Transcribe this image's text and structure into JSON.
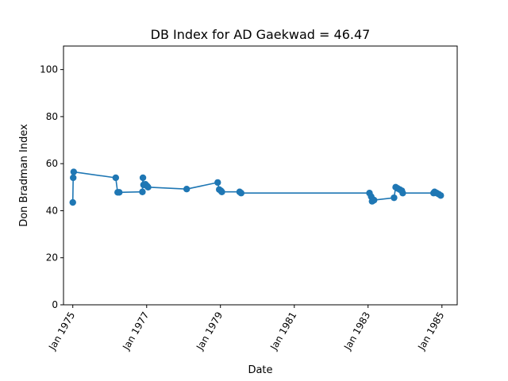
{
  "chart_data": {
    "type": "line",
    "title": "DB Index for AD Gaekwad = 46.47",
    "xlabel": "Date",
    "ylabel": "Don Bradman Index",
    "ylim": [
      0,
      110
    ],
    "xlim": [
      "1974-10-01",
      "1985-06-01"
    ],
    "yticks": [
      0,
      20,
      40,
      60,
      80,
      100
    ],
    "xticks": [
      {
        "date": "1975-01-01",
        "label": "Jan 1975"
      },
      {
        "date": "1977-01-01",
        "label": "Jan 1977"
      },
      {
        "date": "1979-01-01",
        "label": "Jan 1979"
      },
      {
        "date": "1981-01-01",
        "label": "Jan 1981"
      },
      {
        "date": "1983-01-01",
        "label": "Jan 1983"
      },
      {
        "date": "1985-01-01",
        "label": "Jan 1985"
      }
    ],
    "color": "#1f77b4",
    "marker": "circle",
    "grid": false,
    "points": [
      {
        "x": "1975-01-01",
        "y": 43.5
      },
      {
        "x": "1975-01-05",
        "y": 54.0
      },
      {
        "x": "1975-01-10",
        "y": 56.5
      },
      {
        "x": "1976-03-01",
        "y": 54.0
      },
      {
        "x": "1976-03-20",
        "y": 47.8
      },
      {
        "x": "1976-04-05",
        "y": 47.8
      },
      {
        "x": "1976-11-20",
        "y": 48.0
      },
      {
        "x": "1976-11-25",
        "y": 54.0
      },
      {
        "x": "1976-12-01",
        "y": 51.0
      },
      {
        "x": "1976-12-20",
        "y": 51.2
      },
      {
        "x": "1977-01-05",
        "y": 50.5
      },
      {
        "x": "1977-01-15",
        "y": 50.0
      },
      {
        "x": "1978-02-01",
        "y": 49.2
      },
      {
        "x": "1978-12-05",
        "y": 52.0
      },
      {
        "x": "1978-12-20",
        "y": 49.0
      },
      {
        "x": "1979-01-05",
        "y": 48.5
      },
      {
        "x": "1979-01-15",
        "y": 48.0
      },
      {
        "x": "1979-07-10",
        "y": 48.0
      },
      {
        "x": "1979-07-25",
        "y": 47.5
      },
      {
        "x": "1983-01-15",
        "y": 47.5
      },
      {
        "x": "1983-02-01",
        "y": 46.0
      },
      {
        "x": "1983-02-10",
        "y": 44.0
      },
      {
        "x": "1983-03-01",
        "y": 44.5
      },
      {
        "x": "1983-09-15",
        "y": 45.5
      },
      {
        "x": "1983-10-01",
        "y": 50.0
      },
      {
        "x": "1983-10-20",
        "y": 49.5
      },
      {
        "x": "1983-11-10",
        "y": 49.0
      },
      {
        "x": "1983-12-01",
        "y": 48.5
      },
      {
        "x": "1983-12-10",
        "y": 47.5
      },
      {
        "x": "1984-10-10",
        "y": 47.5
      },
      {
        "x": "1984-10-20",
        "y": 48.0
      },
      {
        "x": "1984-11-10",
        "y": 47.5
      },
      {
        "x": "1984-12-01",
        "y": 47.0
      },
      {
        "x": "1984-12-20",
        "y": 46.47
      }
    ]
  }
}
